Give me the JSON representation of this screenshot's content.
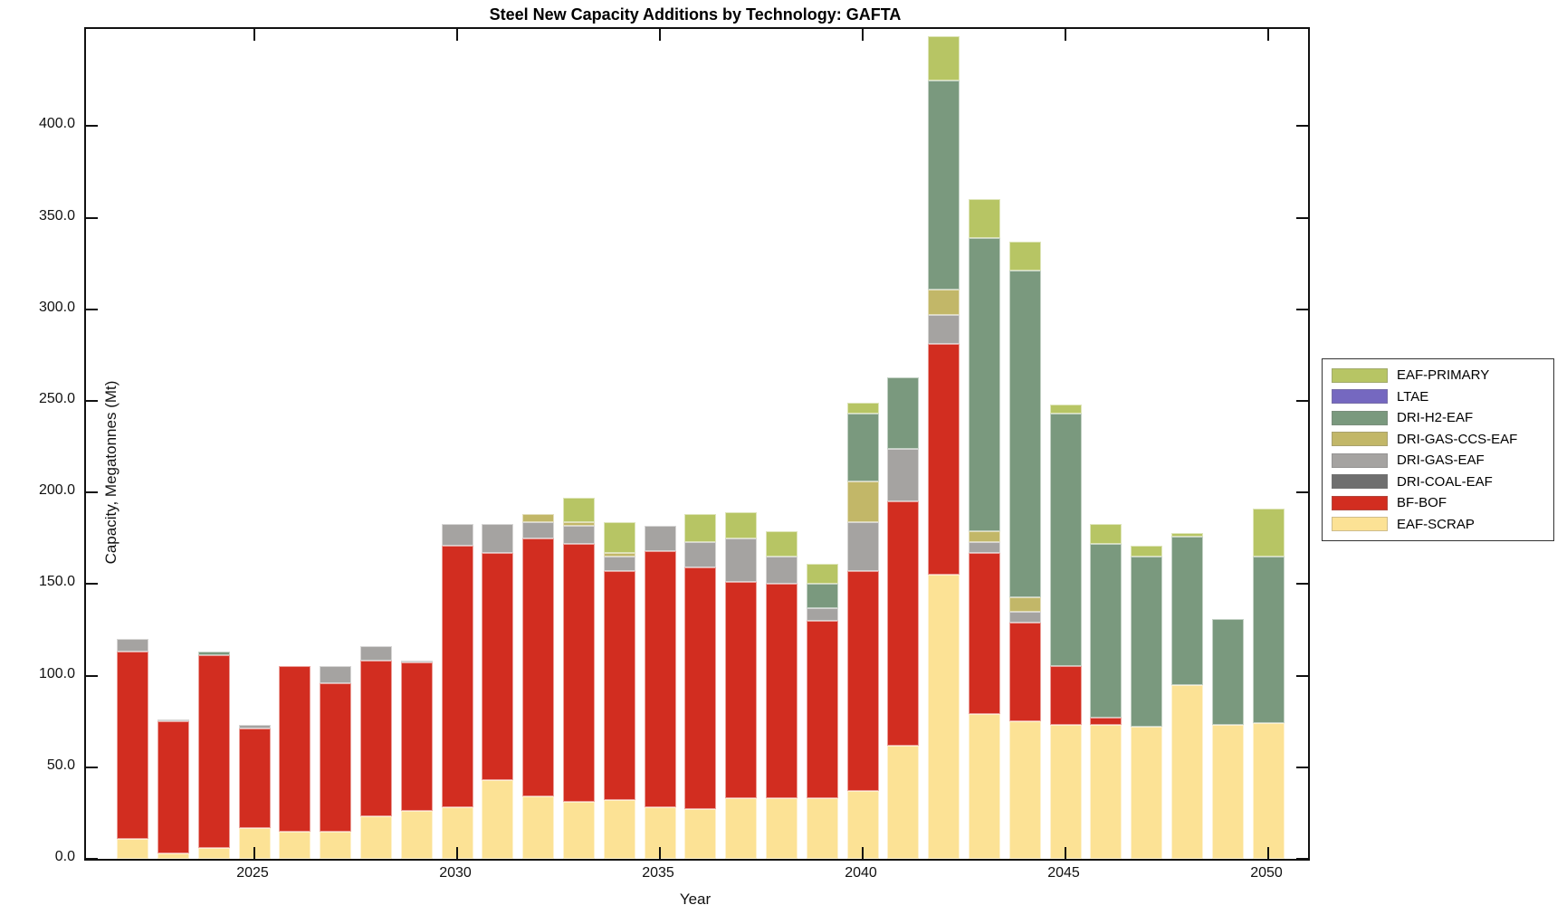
{
  "chart_data": {
    "type": "bar",
    "subtype": "stacked-vertical",
    "title": "Steel New Capacity Additions by Technology: GAFTA",
    "xlabel": "Year",
    "ylabel": "Capacity, Megatonnes (Mt)",
    "ylim": [
      0,
      453
    ],
    "grid": false,
    "legend_position": "right-outside",
    "years": [
      2022,
      2023,
      2024,
      2025,
      2026,
      2027,
      2028,
      2029,
      2030,
      2031,
      2032,
      2033,
      2034,
      2035,
      2036,
      2037,
      2038,
      2039,
      2040,
      2041,
      2042,
      2043,
      2044,
      2045,
      2046,
      2047,
      2048,
      2049,
      2050
    ],
    "x_tick_years": [
      2025,
      2030,
      2035,
      2040,
      2045,
      2050
    ],
    "x_tick_labels": [
      "2025",
      "2030",
      "2035",
      "2040",
      "2045",
      "2050"
    ],
    "y_tick_values": [
      0,
      50,
      100,
      150,
      200,
      250,
      300,
      350,
      400
    ],
    "y_tick_labels": [
      "0.0",
      "50.0",
      "100.0",
      "150.0",
      "200.0",
      "250.0",
      "300.0",
      "350.0",
      "400.0"
    ],
    "series": [
      {
        "name": "EAF-SCRAP",
        "color": "#fce295",
        "values": [
          11,
          3,
          6,
          17,
          15,
          15,
          23,
          26,
          28,
          43,
          34,
          31,
          32,
          28,
          27,
          33,
          33,
          33,
          37,
          62,
          155,
          79,
          75,
          73,
          73,
          72,
          95,
          73,
          74
        ]
      },
      {
        "name": "BF-BOF",
        "color": "#d22d20",
        "values": [
          102,
          72,
          105,
          54,
          90,
          81,
          85,
          81,
          143,
          124,
          141,
          141,
          125,
          140,
          132,
          118,
          117,
          97,
          120,
          133,
          126,
          88,
          54,
          32,
          4,
          0,
          0,
          0,
          0
        ]
      },
      {
        "name": "DRI-COAL-EAF",
        "color": "#6f6f6f",
        "values": [
          0,
          0,
          0,
          0,
          0,
          0,
          0,
          0,
          0,
          0,
          0,
          0,
          0,
          0,
          0,
          0,
          0,
          0,
          0,
          0,
          0,
          0,
          0,
          0,
          0,
          0,
          0,
          0,
          0
        ]
      },
      {
        "name": "DRI-GAS-EAF",
        "color": "#a5a3a1",
        "values": [
          7,
          1,
          0,
          2,
          0,
          9,
          8,
          1,
          12,
          16,
          9,
          10,
          8,
          14,
          14,
          24,
          15,
          7,
          27,
          29,
          16,
          6,
          6,
          0,
          0,
          0,
          0,
          0,
          0
        ]
      },
      {
        "name": "DRI-GAS-CCS-EAF",
        "color": "#c2b768",
        "values": [
          0,
          0,
          0,
          0,
          0,
          0,
          0,
          0,
          0,
          0,
          4,
          2,
          2,
          0,
          0,
          0,
          0,
          0,
          22,
          0,
          14,
          6,
          8,
          0,
          0,
          0,
          0,
          0,
          0
        ]
      },
      {
        "name": "DRI-H2-EAF",
        "color": "#7a997e",
        "values": [
          0,
          0,
          2,
          0,
          0,
          0,
          0,
          0,
          0,
          0,
          0,
          0,
          0,
          0,
          0,
          0,
          0,
          13,
          37,
          39,
          114,
          160,
          178,
          138,
          95,
          93,
          81,
          58,
          91
        ]
      },
      {
        "name": "LTAE",
        "color": "#7568c0",
        "values": [
          0,
          0,
          0,
          0,
          0,
          0,
          0,
          0,
          0,
          0,
          0,
          0,
          0,
          0,
          0,
          0,
          0,
          0,
          0,
          0,
          0,
          0,
          0,
          0,
          0,
          0,
          0,
          0,
          0
        ]
      },
      {
        "name": "EAF-PRIMARY",
        "color": "#b7c564",
        "values": [
          0,
          0,
          0,
          0,
          0,
          0,
          0,
          0,
          0,
          0,
          0,
          13,
          17,
          0,
          15,
          14,
          14,
          11,
          6,
          0,
          24,
          21,
          16,
          5,
          11,
          6,
          2,
          0,
          26
        ]
      }
    ],
    "legend": [
      "EAF-PRIMARY",
      "LTAE",
      "DRI-H2-EAF",
      "DRI-GAS-CCS-EAF",
      "DRI-GAS-EAF",
      "DRI-COAL-EAF",
      "BF-BOF",
      "EAF-SCRAP"
    ]
  }
}
